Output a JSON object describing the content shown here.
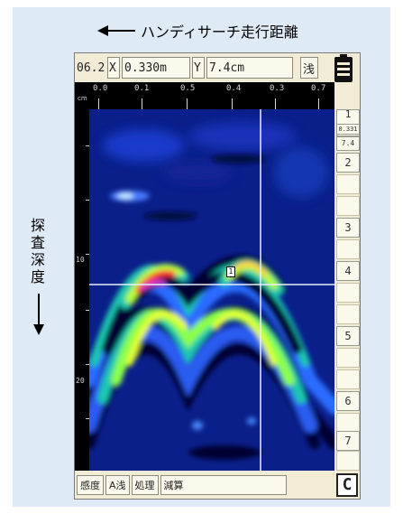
{
  "captions": {
    "horizontal": "ハンディサーチ走行距離",
    "vertical": [
      "探",
      "査",
      "深",
      "度"
    ]
  },
  "topbar": {
    "field1": "06.2",
    "x_label": "X",
    "x_value": "0.330m",
    "y_label": "Y",
    "y_value": "7.4cm",
    "mode": "浅"
  },
  "ruler": {
    "unit": "cm",
    "ticks": [
      "0.0",
      "0.1",
      "0.5",
      "0.4",
      "0.3",
      "0.7"
    ]
  },
  "depth_axis": {
    "labels": [
      "10",
      "20"
    ]
  },
  "scale": {
    "header_small_1": "0.331",
    "header_small_2": "7.4",
    "numbers": [
      "1",
      "2",
      "3",
      "4",
      "5",
      "6",
      "7"
    ]
  },
  "bottombar": {
    "btn1": "感度",
    "btn2": "A浅",
    "btn3": "処理",
    "btn4": "減算",
    "c_button": "C"
  },
  "marker": {
    "label": "1"
  },
  "colors": {
    "radar_background": "#0a1f8a",
    "radar_hot": "#ff3b3b",
    "radar_mid": "#c6ff3b",
    "radar_teal": "#1fc8b0",
    "crosshair": "#e8eef8",
    "panel_background": "#dfeaf7"
  }
}
